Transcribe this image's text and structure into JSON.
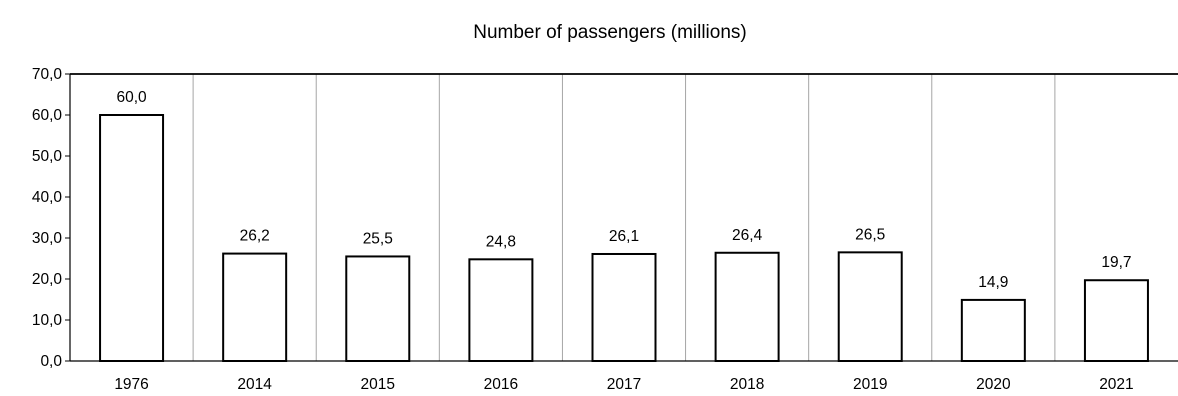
{
  "chart_data": {
    "type": "bar",
    "title": "Number of passengers (millions)",
    "xlabel": "",
    "ylabel": "",
    "categories": [
      "1976",
      "2014",
      "2015",
      "2016",
      "2017",
      "2018",
      "2019",
      "2020",
      "2021"
    ],
    "values": [
      60.0,
      26.2,
      25.5,
      24.8,
      26.1,
      26.4,
      26.5,
      14.9,
      19.7
    ],
    "data_labels": [
      "60,0",
      "26,2",
      "25,5",
      "24,8",
      "26,1",
      "26,4",
      "26,5",
      "14,9",
      "19,7"
    ],
    "ylim": [
      0,
      70
    ],
    "y_ticks": [
      "0,0",
      "10,0",
      "20,0",
      "30,0",
      "40,0",
      "50,0",
      "60,0",
      "70,0"
    ],
    "grid": "vertical",
    "legend": "none",
    "colors": {
      "bar_fill": "#ffffff",
      "bar_stroke": "#000000",
      "grid": "#a6a6a6"
    }
  }
}
